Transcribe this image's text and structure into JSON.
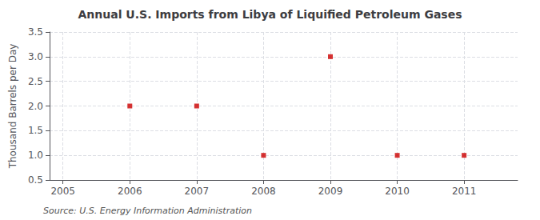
{
  "chart_data": {
    "type": "scatter",
    "title": "Annual U.S. Imports from Libya of Liquified Petroleum Gases",
    "ylabel": "Thousand Barrels per Day",
    "source": "Source: U.S. Energy Information Administration",
    "x": [
      2006,
      2007,
      2008,
      2009,
      2010,
      2011
    ],
    "values": [
      2.0,
      2.0,
      1.0,
      3.0,
      1.0,
      1.0
    ],
    "color": "#cc0000",
    "marker": "square",
    "xlim": [
      2004.8,
      2011.8
    ],
    "xticks": [
      2005,
      2006,
      2007,
      2008,
      2009,
      2010,
      2011
    ],
    "ylim": [
      0.5,
      3.5
    ],
    "yticks": [
      0.5,
      {
        "value": 1.0,
        "label": "1.0"
      },
      1.5,
      {
        "value": 2.0,
        "label": "2.0"
      },
      2.5,
      {
        "value": 3.0,
        "label": "3.0"
      },
      3.5
    ],
    "grid": true
  }
}
